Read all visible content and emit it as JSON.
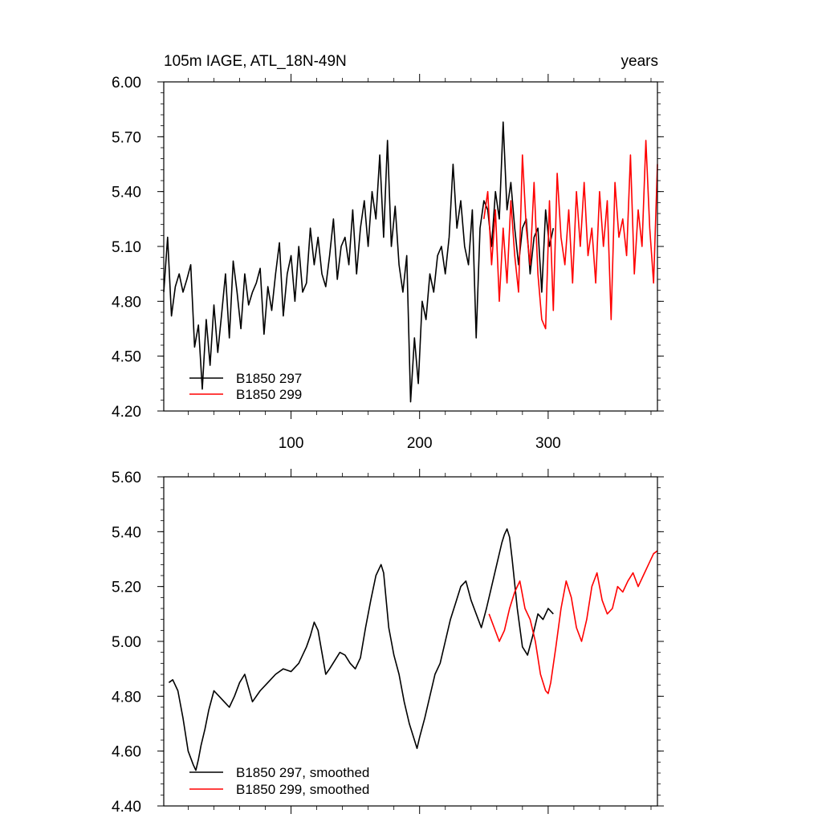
{
  "chart_data": [
    {
      "type": "line",
      "title": "105m IAGE, ATL_18N-49N",
      "right_label": "years",
      "xlim": [
        1,
        385
      ],
      "ylim": [
        4.2,
        6.0
      ],
      "x_ticks": [
        100,
        200,
        300
      ],
      "x_tick_labels": [
        "100",
        "200",
        "300"
      ],
      "y_ticks": [
        4.2,
        4.5,
        4.8,
        5.1,
        5.4,
        5.7,
        6.0
      ],
      "y_tick_labels": [
        "4.20",
        "4.50",
        "4.80",
        "5.10",
        "5.40",
        "5.70",
        "6.00"
      ],
      "legend_placement": "bottom-left",
      "series": [
        {
          "name": "B1850 297",
          "color": "#000000",
          "x": [
            1,
            4,
            7,
            10,
            13,
            16,
            19,
            22,
            25,
            28,
            31,
            34,
            37,
            40,
            43,
            46,
            49,
            52,
            55,
            58,
            61,
            64,
            67,
            70,
            73,
            76,
            79,
            82,
            85,
            88,
            91,
            94,
            97,
            100,
            103,
            106,
            109,
            112,
            115,
            118,
            121,
            124,
            127,
            130,
            133,
            136,
            139,
            142,
            145,
            148,
            151,
            154,
            157,
            160,
            163,
            166,
            169,
            172,
            175,
            178,
            181,
            184,
            187,
            190,
            193,
            196,
            199,
            202,
            205,
            208,
            211,
            214,
            217,
            220,
            223,
            226,
            229,
            232,
            235,
            238,
            241,
            244,
            247,
            250,
            253,
            256,
            259,
            262,
            265,
            268,
            271,
            274,
            277,
            280,
            283,
            286,
            289,
            292,
            295,
            298,
            301,
            304
          ],
          "values": [
            4.85,
            5.15,
            4.72,
            4.88,
            4.95,
            4.85,
            4.92,
            5.0,
            4.55,
            4.67,
            4.32,
            4.7,
            4.45,
            4.78,
            4.52,
            4.73,
            4.95,
            4.6,
            5.02,
            4.85,
            4.65,
            4.95,
            4.78,
            4.85,
            4.9,
            4.98,
            4.62,
            4.88,
            4.75,
            4.95,
            5.12,
            4.72,
            4.95,
            5.05,
            4.8,
            5.1,
            4.85,
            4.9,
            5.2,
            5.0,
            5.15,
            4.95,
            4.88,
            5.05,
            5.25,
            4.92,
            5.1,
            5.15,
            5.0,
            5.3,
            4.95,
            5.2,
            5.35,
            5.1,
            5.4,
            5.25,
            5.6,
            5.15,
            5.68,
            5.1,
            5.32,
            5.0,
            4.85,
            5.05,
            4.25,
            4.6,
            4.35,
            4.8,
            4.7,
            4.95,
            4.85,
            5.05,
            5.1,
            4.95,
            5.15,
            5.55,
            5.2,
            5.35,
            5.1,
            5.0,
            5.3,
            4.6,
            5.2,
            5.35,
            5.3,
            5.1,
            5.4,
            5.25,
            5.78,
            5.3,
            5.45,
            5.2,
            5.0,
            5.2,
            5.25,
            4.95,
            5.15,
            5.2,
            4.85,
            5.3,
            5.1,
            5.2
          ]
        },
        {
          "name": "B1850 299",
          "color": "#ff0000",
          "x": [
            250,
            253,
            256,
            259,
            262,
            265,
            268,
            271,
            274,
            277,
            280,
            283,
            286,
            289,
            292,
            295,
            298,
            301,
            304,
            307,
            310,
            313,
            316,
            319,
            322,
            325,
            328,
            331,
            334,
            337,
            340,
            343,
            346,
            349,
            352,
            355,
            358,
            361,
            364,
            367,
            370,
            373,
            376,
            379,
            382,
            385
          ],
          "values": [
            5.25,
            5.4,
            5.0,
            5.3,
            4.8,
            5.2,
            4.9,
            5.35,
            5.05,
            4.85,
            5.6,
            5.2,
            5.0,
            5.45,
            4.95,
            4.7,
            4.65,
            5.35,
            4.75,
            5.5,
            5.15,
            5.0,
            5.3,
            4.9,
            5.4,
            5.1,
            5.45,
            5.05,
            5.2,
            4.9,
            5.4,
            5.1,
            5.35,
            4.7,
            5.45,
            5.15,
            5.25,
            5.05,
            5.6,
            4.95,
            5.3,
            5.1,
            5.68,
            5.2,
            4.9,
            5.55
          ]
        }
      ]
    },
    {
      "type": "line",
      "xlim": [
        1,
        385
      ],
      "ylim": [
        4.4,
        5.6
      ],
      "x_ticks": [
        100,
        200,
        300
      ],
      "y_ticks": [
        4.4,
        4.6,
        4.8,
        5.0,
        5.2,
        5.4,
        5.6
      ],
      "y_tick_labels": [
        "4.40",
        "4.60",
        "4.80",
        "5.00",
        "5.20",
        "5.40",
        "5.60"
      ],
      "legend_placement": "bottom-left",
      "series": [
        {
          "name": "B1850 297, smoothed",
          "color": "#000000",
          "x": [
            5,
            8,
            12,
            16,
            20,
            24,
            26,
            28,
            30,
            33,
            36,
            40,
            44,
            48,
            52,
            56,
            60,
            64,
            70,
            76,
            82,
            88,
            94,
            100,
            106,
            112,
            115,
            118,
            121,
            124,
            127,
            130,
            134,
            138,
            142,
            146,
            150,
            154,
            158,
            162,
            166,
            170,
            172,
            174,
            176,
            180,
            184,
            188,
            192,
            196,
            198,
            200,
            204,
            208,
            212,
            216,
            220,
            224,
            228,
            232,
            236,
            240,
            244,
            248,
            252,
            256,
            260,
            264,
            266,
            268,
            270,
            272,
            276,
            280,
            284,
            288,
            292,
            296,
            300,
            304
          ],
          "values": [
            4.85,
            4.86,
            4.82,
            4.72,
            4.6,
            4.55,
            4.53,
            4.57,
            4.62,
            4.68,
            4.75,
            4.82,
            4.8,
            4.78,
            4.76,
            4.8,
            4.85,
            4.88,
            4.78,
            4.82,
            4.85,
            4.88,
            4.9,
            4.89,
            4.92,
            4.98,
            5.02,
            5.07,
            5.04,
            4.96,
            4.88,
            4.9,
            4.93,
            4.96,
            4.95,
            4.92,
            4.9,
            4.94,
            5.05,
            5.15,
            5.24,
            5.28,
            5.25,
            5.15,
            5.05,
            4.95,
            4.88,
            4.78,
            4.7,
            4.64,
            4.61,
            4.65,
            4.72,
            4.8,
            4.88,
            4.92,
            5.0,
            5.08,
            5.14,
            5.2,
            5.22,
            5.15,
            5.1,
            5.05,
            5.12,
            5.2,
            5.28,
            5.36,
            5.39,
            5.41,
            5.38,
            5.3,
            5.12,
            4.98,
            4.95,
            5.02,
            5.1,
            5.08,
            5.12,
            5.1
          ]
        },
        {
          "name": "B1850 299, smoothed",
          "color": "#ff0000",
          "x": [
            254,
            258,
            262,
            266,
            270,
            274,
            278,
            282,
            286,
            290,
            294,
            298,
            300,
            302,
            306,
            310,
            314,
            318,
            322,
            326,
            330,
            334,
            338,
            342,
            346,
            350,
            354,
            358,
            362,
            366,
            370,
            374,
            378,
            382,
            385
          ],
          "values": [
            5.1,
            5.05,
            5.0,
            5.04,
            5.12,
            5.18,
            5.22,
            5.12,
            5.08,
            5.0,
            4.88,
            4.82,
            4.81,
            4.85,
            4.98,
            5.12,
            5.22,
            5.16,
            5.05,
            5.0,
            5.08,
            5.2,
            5.25,
            5.15,
            5.1,
            5.12,
            5.2,
            5.18,
            5.22,
            5.25,
            5.2,
            5.24,
            5.28,
            5.32,
            5.33
          ]
        }
      ]
    }
  ]
}
